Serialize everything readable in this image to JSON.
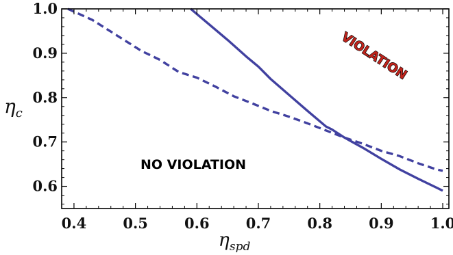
{
  "chart_data": {
    "type": "line",
    "xlabel": "η_spd",
    "ylabel": "η_c",
    "xlim": [
      0.38,
      1.01
    ],
    "ylim": [
      0.55,
      1.0
    ],
    "grid": false,
    "legend": "none",
    "x_ticks": [
      "0.4",
      "0.5",
      "0.6",
      "0.7",
      "0.8",
      "0.9",
      "1.0"
    ],
    "y_ticks": [
      "0.6",
      "0.7",
      "0.8",
      "0.9",
      "1.0"
    ],
    "annotations": {
      "no_violation": "NO VIOLATION",
      "violation": "VIOLATION"
    },
    "series": [
      {
        "style": "solid",
        "color": "#4141a0",
        "points": [
          [
            0.59,
            1.0
          ],
          [
            0.62,
            0.965
          ],
          [
            0.65,
            0.93
          ],
          [
            0.68,
            0.893
          ],
          [
            0.7,
            0.87
          ],
          [
            0.72,
            0.842
          ],
          [
            0.75,
            0.806
          ],
          [
            0.78,
            0.77
          ],
          [
            0.81,
            0.735
          ],
          [
            0.82,
            0.728
          ],
          [
            0.84,
            0.71
          ],
          [
            0.87,
            0.687
          ],
          [
            0.9,
            0.662
          ],
          [
            0.93,
            0.638
          ],
          [
            0.96,
            0.617
          ],
          [
            0.99,
            0.597
          ],
          [
            1.0,
            0.59
          ]
        ]
      },
      {
        "style": "dashed",
        "color": "#4141a0",
        "points": [
          [
            0.39,
            1.0
          ],
          [
            0.43,
            0.975
          ],
          [
            0.47,
            0.94
          ],
          [
            0.51,
            0.905
          ],
          [
            0.54,
            0.885
          ],
          [
            0.57,
            0.858
          ],
          [
            0.6,
            0.845
          ],
          [
            0.63,
            0.825
          ],
          [
            0.66,
            0.803
          ],
          [
            0.69,
            0.787
          ],
          [
            0.72,
            0.77
          ],
          [
            0.75,
            0.757
          ],
          [
            0.78,
            0.742
          ],
          [
            0.81,
            0.726
          ],
          [
            0.84,
            0.71
          ],
          [
            0.87,
            0.696
          ],
          [
            0.9,
            0.68
          ],
          [
            0.93,
            0.668
          ],
          [
            0.96,
            0.652
          ],
          [
            0.99,
            0.638
          ],
          [
            1.0,
            0.635
          ]
        ]
      }
    ]
  }
}
